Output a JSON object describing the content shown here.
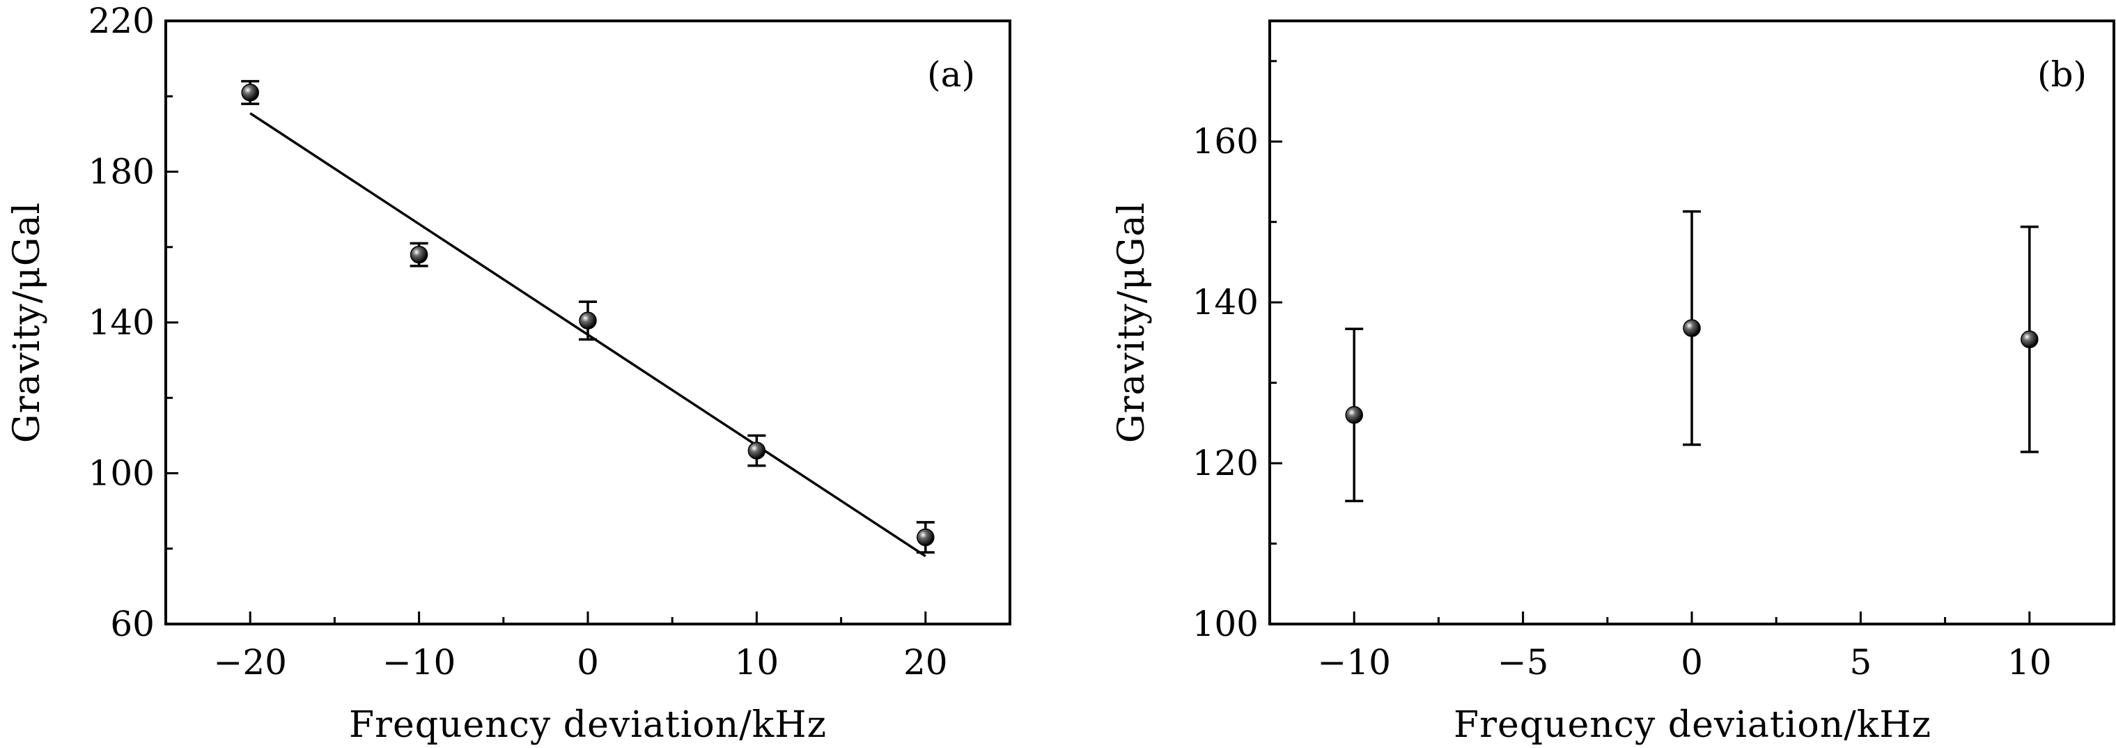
{
  "chart_data": [
    {
      "type": "scatter",
      "panel_label": "(a)",
      "xlabel": "Frequency deviation/kHz",
      "ylabel": "Gravity/μGal",
      "xlim": [
        -25,
        25
      ],
      "ylim": [
        60,
        220
      ],
      "xticks": [
        -20,
        -10,
        0,
        10,
        20
      ],
      "xtick_labels": [
        "−20",
        "−10",
        "0",
        "10",
        "20"
      ],
      "yticks": [
        60,
        100,
        140,
        180,
        220
      ],
      "ytick_labels": [
        "60",
        "100",
        "140",
        "180",
        "220"
      ],
      "x_minor_step": 5,
      "y_minor_step": 20,
      "grid": false,
      "points": [
        {
          "x": -20,
          "y": 201,
          "err": 3
        },
        {
          "x": -10,
          "y": 158,
          "err": 3
        },
        {
          "x": 0,
          "y": 140.5,
          "err": 5
        },
        {
          "x": 10,
          "y": 106,
          "err": 4
        },
        {
          "x": 20,
          "y": 83,
          "err": 4
        }
      ],
      "fit_line": {
        "x": [
          -20,
          20
        ],
        "y": [
          195.5,
          78
        ]
      }
    },
    {
      "type": "scatter",
      "panel_label": "(b)",
      "xlabel": "Frequency deviation/kHz",
      "ylabel": "Gravity/μGal",
      "xlim": [
        -12.5,
        12.5
      ],
      "ylim": [
        100,
        175
      ],
      "xticks": [
        -10,
        -5,
        0,
        5,
        10
      ],
      "xtick_labels": [
        "−10",
        "−5",
        "0",
        "5",
        "10"
      ],
      "yticks": [
        100,
        120,
        140,
        160
      ],
      "ytick_labels": [
        "100",
        "120",
        "140",
        "160"
      ],
      "x_minor_step": 2.5,
      "y_minor_step": 10,
      "grid": false,
      "points": [
        {
          "x": -10,
          "y": 126,
          "err": 10.7
        },
        {
          "x": 0,
          "y": 136.8,
          "err": 14.5
        },
        {
          "x": 10,
          "y": 135.4,
          "err": 14
        }
      ]
    }
  ]
}
